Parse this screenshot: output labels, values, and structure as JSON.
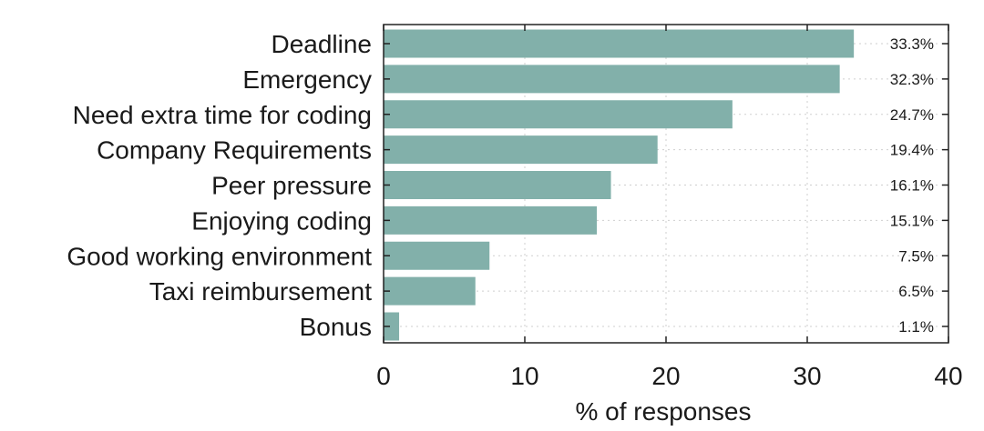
{
  "chart_data": {
    "type": "bar",
    "orientation": "horizontal",
    "categories": [
      "Deadline",
      "Emergency",
      "Need extra time for coding",
      "Company Requirements",
      "Peer pressure",
      "Enjoying coding",
      "Good working environment",
      "Taxi reimbursement",
      "Bonus"
    ],
    "values": [
      33.3,
      32.3,
      24.7,
      19.4,
      16.1,
      15.1,
      7.5,
      6.5,
      1.1
    ],
    "data_labels": [
      "33.3%",
      "32.3%",
      "24.7%",
      "19.4%",
      "16.1%",
      "15.1%",
      "7.5%",
      "6.5%",
      "1.1%"
    ],
    "xticks": [
      0,
      10,
      20,
      30,
      40
    ],
    "xlim": [
      0,
      40
    ],
    "xlabel": "% of responses",
    "ylabel": "",
    "title": "",
    "grid": true,
    "bar_color": "#82b0aa"
  }
}
